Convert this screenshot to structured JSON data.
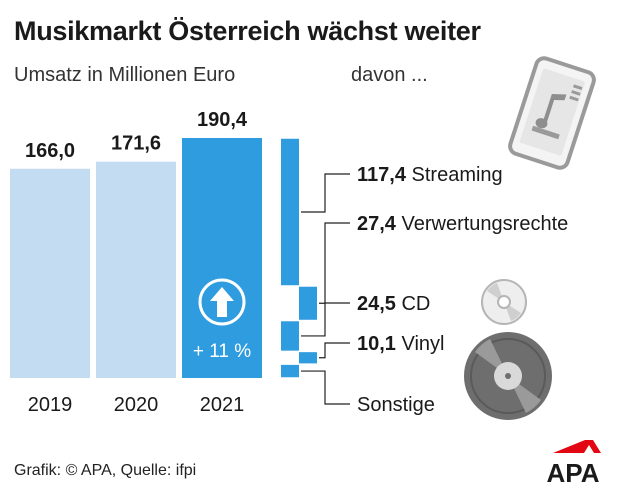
{
  "title": "Musikmarkt Österreich wächst weiter",
  "subtitle": "Umsatz in Millionen Euro",
  "breakdown_heading": "davon ...",
  "growth_label": "+ 11 %",
  "source": "Grafik: © APA, Quelle: ifpi",
  "logo_text": "APA",
  "colors": {
    "bar_light": "#c3dcf2",
    "bar_highlight": "#2f9ce0",
    "segment": "#2f9ce0",
    "logo_red": "#e30613",
    "text": "#1a1a1a",
    "icon_gray": "#9a9a9a"
  },
  "icons": [
    "arrow-up-icon",
    "smartphone-music-icon",
    "cd-icon",
    "vinyl-icon"
  ],
  "chart_data": [
    {
      "type": "bar",
      "categories": [
        "2019",
        "2020",
        "2021"
      ],
      "values": [
        166.0,
        171.6,
        190.4
      ],
      "value_labels": [
        "166,0",
        "171,6",
        "190,4"
      ],
      "highlight": "2021",
      "ylim": [
        0,
        190.4
      ]
    },
    {
      "type": "bar",
      "stacked": true,
      "total": 190.4,
      "segments": [
        {
          "name": "Streaming",
          "value": 117.4,
          "value_label": "117,4"
        },
        {
          "name": "Verwertungsrechte",
          "value": 27.4,
          "value_label": "27,4"
        },
        {
          "name": "CD",
          "value": 24.5,
          "value_label": "24,5"
        },
        {
          "name": "Vinyl",
          "value": 10.1,
          "value_label": "10,1"
        },
        {
          "name": "Sonstige",
          "value": 11.0,
          "value_label": ""
        }
      ]
    }
  ]
}
